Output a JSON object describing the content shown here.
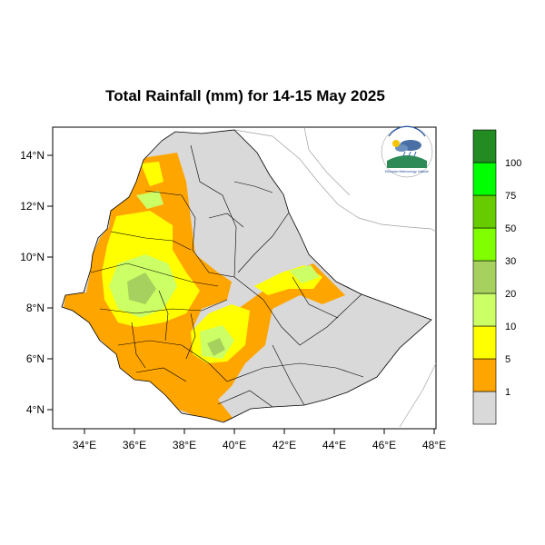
{
  "title": "Total Rainfall (mm) for 14-15 May 2025",
  "map": {
    "lon_range": [
      33,
      48
    ],
    "lat_range": [
      3.2,
      15
    ],
    "x_ticks": [
      "34°E",
      "36°E",
      "38°E",
      "40°E",
      "42°E",
      "44°E",
      "46°E",
      "48°E"
    ],
    "y_ticks": [
      "14°N",
      "12°N",
      "10°N",
      "8°N",
      "6°N",
      "4°N"
    ],
    "no_data_color": "#d9d9d9"
  },
  "legend": {
    "labels": [
      "1",
      "5",
      "10",
      "20",
      "30",
      "50",
      "75",
      "100"
    ],
    "colors": [
      "#d9d9d9",
      "#ffa500",
      "#ffff00",
      "#ccff66",
      "#a6d15e",
      "#7fff00",
      "#66cc00",
      "#00ff00",
      "#22b022",
      "#228b22"
    ]
  },
  "logo": {
    "icon": "ethiopian-meteorology-institute-logo",
    "text": "Ethiopian Meteorology Institute"
  }
}
